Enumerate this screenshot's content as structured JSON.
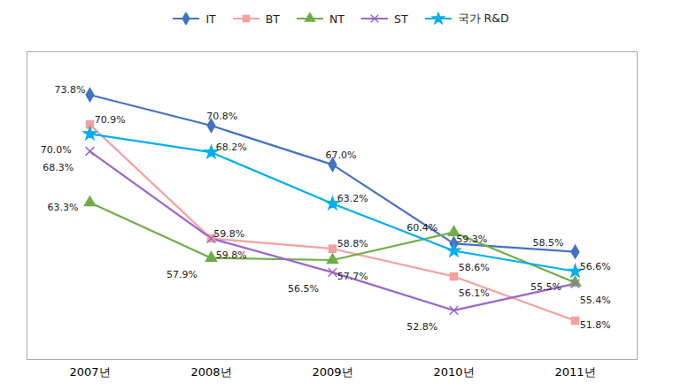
{
  "chart_data": {
    "type": "line",
    "categories": [
      "2007년",
      "2008년",
      "2009년",
      "2010년",
      "2011년"
    ],
    "series": [
      {
        "name": "IT",
        "color": "#4472C4",
        "marker": "diamond",
        "values": [
          73.8,
          70.8,
          67.0,
          59.3,
          58.5
        ],
        "value_labels": [
          "73.8%",
          "70.8%",
          "67.0%",
          "59.3%",
          "58.5%"
        ]
      },
      {
        "name": "BT",
        "color": "#F4A0A0",
        "marker": "square",
        "values": [
          70.9,
          59.8,
          58.8,
          56.1,
          51.8
        ],
        "value_labels": [
          "70.9%",
          "59.8%",
          "58.8%",
          "56.1%",
          "51.8%"
        ]
      },
      {
        "name": "NT",
        "color": "#70AD47",
        "marker": "triangle",
        "values": [
          63.3,
          57.9,
          57.7,
          60.4,
          55.5
        ],
        "value_labels": [
          "63.3%",
          "57.9%",
          "57.7%",
          "60.4%",
          "55.5%"
        ]
      },
      {
        "name": "ST",
        "color": "#9966CC",
        "marker": "times",
        "values": [
          68.3,
          59.8,
          56.5,
          52.8,
          55.4
        ],
        "value_labels": [
          "68.3%",
          "59.8%",
          "56.5%",
          "52.8%",
          "55.4%"
        ]
      },
      {
        "name": "국가 R&D",
        "color": "#00AEEF",
        "marker": "star",
        "values": [
          70.0,
          68.2,
          63.2,
          58.6,
          56.6
        ],
        "value_labels": [
          "70.0%",
          "68.2%",
          "63.2%",
          "58.6%",
          "56.6%"
        ]
      }
    ],
    "ylim": [
      48,
      78
    ],
    "tick_labels": "x",
    "data_labels": true,
    "legend": "top"
  }
}
